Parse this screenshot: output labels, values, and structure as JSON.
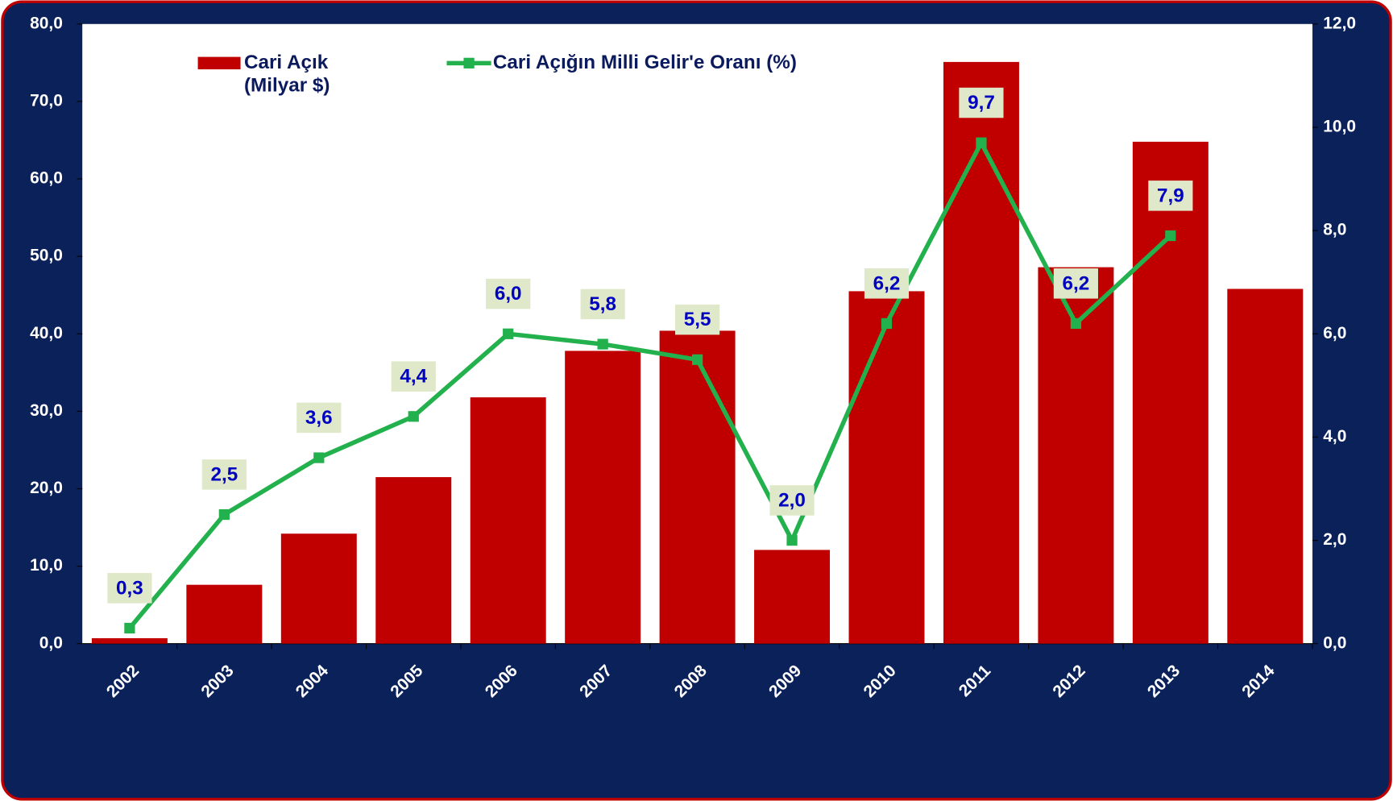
{
  "chart_data": {
    "type": "bar-line",
    "categories": [
      "2002",
      "2003",
      "2004",
      "2005",
      "2006",
      "2007",
      "2008",
      "2009",
      "2010",
      "2011",
      "2012",
      "2013",
      "2014"
    ],
    "series": [
      {
        "name": "Cari Açık (Milyar $)",
        "type": "bar",
        "color": "#c00000",
        "axis": "y",
        "values": [
          0.7,
          7.6,
          14.2,
          21.5,
          31.8,
          37.8,
          40.4,
          12.1,
          45.5,
          75.1,
          48.6,
          64.8,
          45.8
        ]
      },
      {
        "name": "Cari Açığın Milli Gelir'e Oranı (%)",
        "type": "line",
        "color": "#22b14c",
        "axis": "y2",
        "values": [
          0.3,
          2.5,
          3.6,
          4.4,
          6.0,
          5.8,
          5.5,
          2.0,
          6.2,
          9.7,
          6.2,
          7.9,
          null
        ],
        "value_labels": [
          "0,3",
          "2,5",
          "3,6",
          "4,4",
          "6,0",
          "5,8",
          "5,5",
          "2,0",
          "6,2",
          "9,7",
          "6,2",
          "7,9",
          null
        ]
      }
    ],
    "ylim": [
      0,
      80
    ],
    "yticks": [
      {
        "value": 0,
        "label": "0,0"
      },
      {
        "value": 10,
        "label": "10,0"
      },
      {
        "value": 20,
        "label": "20,0"
      },
      {
        "value": 30,
        "label": "30,0"
      },
      {
        "value": 40,
        "label": "40,0"
      },
      {
        "value": 50,
        "label": "50,0"
      },
      {
        "value": 60,
        "label": "60,0"
      },
      {
        "value": 70,
        "label": "70,0"
      },
      {
        "value": 80,
        "label": "80,0"
      }
    ],
    "y2lim": [
      0,
      12
    ],
    "y2ticks": [
      {
        "value": 0,
        "label": "0,0"
      },
      {
        "value": 2,
        "label": "2,0"
      },
      {
        "value": 4,
        "label": "4,0"
      },
      {
        "value": 6,
        "label": "6,0"
      },
      {
        "value": 8,
        "label": "8,0"
      },
      {
        "value": 10,
        "label": "10,0"
      },
      {
        "value": 12,
        "label": "12,0"
      }
    ]
  }
}
